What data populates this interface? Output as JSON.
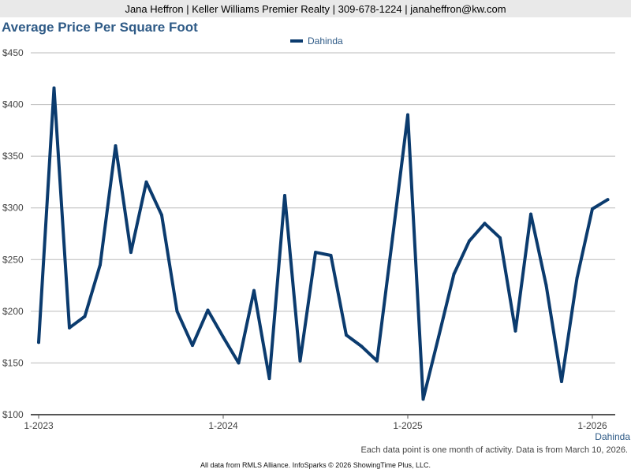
{
  "header": {
    "agent_line": "Jana Heffron | Keller Williams Premier Realty | 309-678-1224 | janaheffron@kw.com"
  },
  "footer": {
    "note": "Each data point is one month of activity. Data is from March 10, 2026.",
    "source": "All data from RMLS Alliance. InfoSparks © 2026 ShowingTime Plus, LLC."
  },
  "chart_data": {
    "type": "line",
    "title": "Average Price Per Square Foot",
    "xlabel": "",
    "ylabel": "",
    "ylim": [
      100,
      450
    ],
    "yticks": [
      100,
      150,
      200,
      250,
      300,
      350,
      400,
      450
    ],
    "ytick_labels": [
      "$100",
      "$150",
      "$200",
      "$250",
      "$300",
      "$350",
      "$400",
      "$450"
    ],
    "xtick_labels": [
      "1-2023",
      "1-2024",
      "1-2025",
      "1-2026"
    ],
    "grid": true,
    "legend_position": "top-center",
    "series": [
      {
        "name": "Dahinda",
        "color": "#0b3b6e",
        "x": [
          "2023-01",
          "2023-02",
          "2023-03",
          "2023-04",
          "2023-05",
          "2023-06",
          "2023-07",
          "2023-08",
          "2023-09",
          "2023-10",
          "2023-11",
          "2023-12",
          "2024-01",
          "2024-02",
          "2024-03",
          "2024-04",
          "2024-05",
          "2024-06",
          "2024-07",
          "2024-08",
          "2024-09",
          "2024-10",
          "2024-11",
          "2024-12",
          "2025-01",
          "2025-02",
          "2025-03",
          "2025-04",
          "2025-05",
          "2025-06",
          "2025-07",
          "2025-08",
          "2025-09",
          "2025-10",
          "2025-11",
          "2025-12",
          "2026-01",
          "2026-02"
        ],
        "values": [
          170,
          416,
          184,
          195,
          245,
          360,
          257,
          325,
          293,
          200,
          167,
          201,
          175,
          150,
          220,
          135,
          312,
          152,
          257,
          254,
          177,
          166,
          152,
          270,
          390,
          115,
          175,
          236,
          268,
          285,
          271,
          181,
          294,
          225,
          132,
          232,
          299,
          308
        ]
      }
    ]
  }
}
